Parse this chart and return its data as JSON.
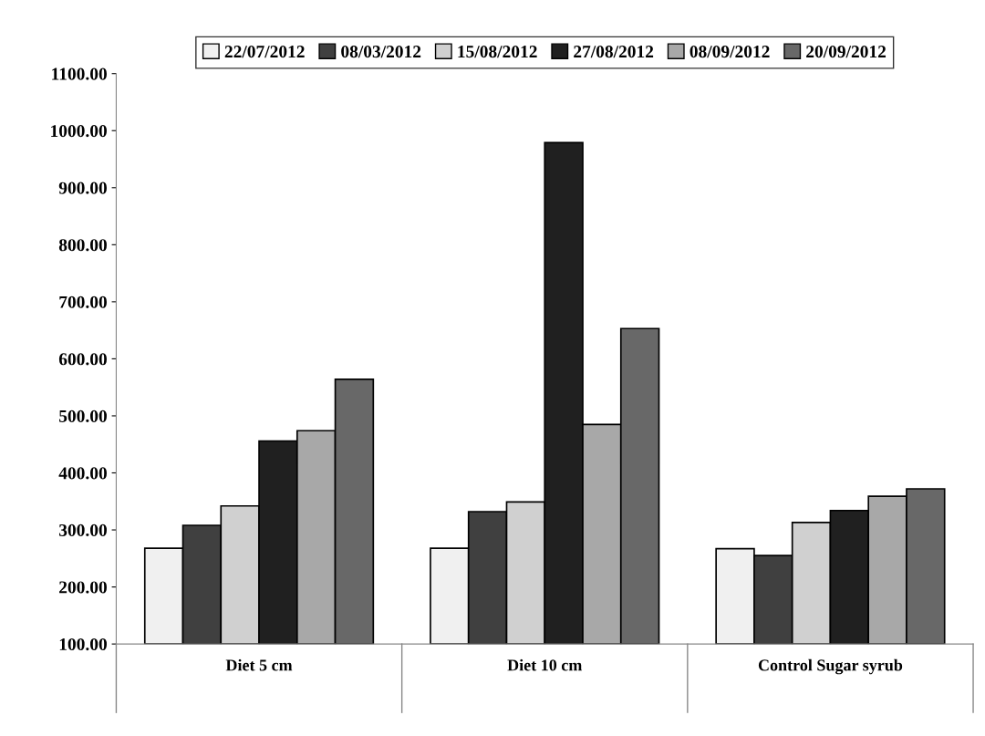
{
  "chart_data": {
    "type": "bar",
    "categories": [
      "Diet 5 cm",
      "Diet 10 cm",
      "Control Sugar syrub"
    ],
    "series": [
      {
        "name": "22/07/2012",
        "color": "#f0f0f0",
        "values": [
          268,
          268,
          267
        ]
      },
      {
        "name": "08/03/2012",
        "color": "#404040",
        "values": [
          308,
          332,
          255
        ]
      },
      {
        "name": "15/08/2012",
        "color": "#d0d0d0",
        "values": [
          342,
          349,
          313
        ]
      },
      {
        "name": "27/08/2012",
        "color": "#202020",
        "values": [
          456,
          979,
          334
        ]
      },
      {
        "name": "08/09/2012",
        "color": "#a8a8a8",
        "values": [
          474,
          485,
          359
        ]
      },
      {
        "name": "20/09/2012",
        "color": "#686868",
        "values": [
          564,
          653,
          372
        ]
      }
    ],
    "ylim": [
      100,
      1100
    ],
    "yticks": [
      {
        "value": 100,
        "label": "100.00"
      },
      {
        "value": 200,
        "label": "200.00"
      },
      {
        "value": 300,
        "label": "300.00"
      },
      {
        "value": 400,
        "label": "400.00"
      },
      {
        "value": 500,
        "label": "500.00"
      },
      {
        "value": 600,
        "label": "600.00"
      },
      {
        "value": 700,
        "label": "700.00"
      },
      {
        "value": 800,
        "label": "800.00"
      },
      {
        "value": 900,
        "label": "900.00"
      },
      {
        "value": 1000,
        "label": "1000.00"
      },
      {
        "value": 1100,
        "label": "1100.00"
      }
    ],
    "legend": "top",
    "grid": false
  }
}
